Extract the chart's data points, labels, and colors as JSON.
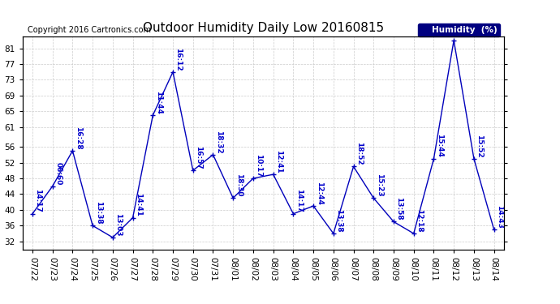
{
  "title": "Outdoor Humidity Daily Low 20160815",
  "copyright": "Copyright 2016 Cartronics.com",
  "legend_label": "Humidity  (%)",
  "background_color": "#ffffff",
  "line_color": "#0000bb",
  "grid_color": "#cccccc",
  "text_color": "#0000cc",
  "ylim": [
    30,
    84
  ],
  "yticks": [
    32,
    36,
    40,
    44,
    48,
    52,
    56,
    61,
    65,
    69,
    73,
    77,
    81
  ],
  "dates": [
    "07/22",
    "07/23",
    "07/24",
    "07/25",
    "07/26",
    "07/27",
    "07/28",
    "07/29",
    "07/30",
    "07/31",
    "08/01",
    "08/02",
    "08/03",
    "08/04",
    "08/05",
    "08/06",
    "08/07",
    "08/08",
    "08/09",
    "08/10",
    "08/11",
    "08/12",
    "08/13",
    "08/14"
  ],
  "values": [
    39,
    46,
    55,
    36,
    33,
    38,
    64,
    75,
    50,
    54,
    43,
    48,
    49,
    39,
    41,
    34,
    51,
    43,
    37,
    34,
    53,
    83,
    53,
    35
  ],
  "labels": [
    "14:17",
    "06:60",
    "16:28",
    "13:38",
    "13:03",
    "14:41",
    "11:44",
    "16:12",
    "16:57",
    "18:32",
    "18:30",
    "10:17",
    "12:41",
    "14:17",
    "12:44",
    "13:38",
    "18:52",
    "15:23",
    "13:58",
    "12:18",
    "15:44",
    "",
    "15:52",
    "14:43"
  ],
  "title_fontsize": 11,
  "label_fontsize": 6.5,
  "tick_fontsize": 7.5,
  "copyright_fontsize": 7
}
